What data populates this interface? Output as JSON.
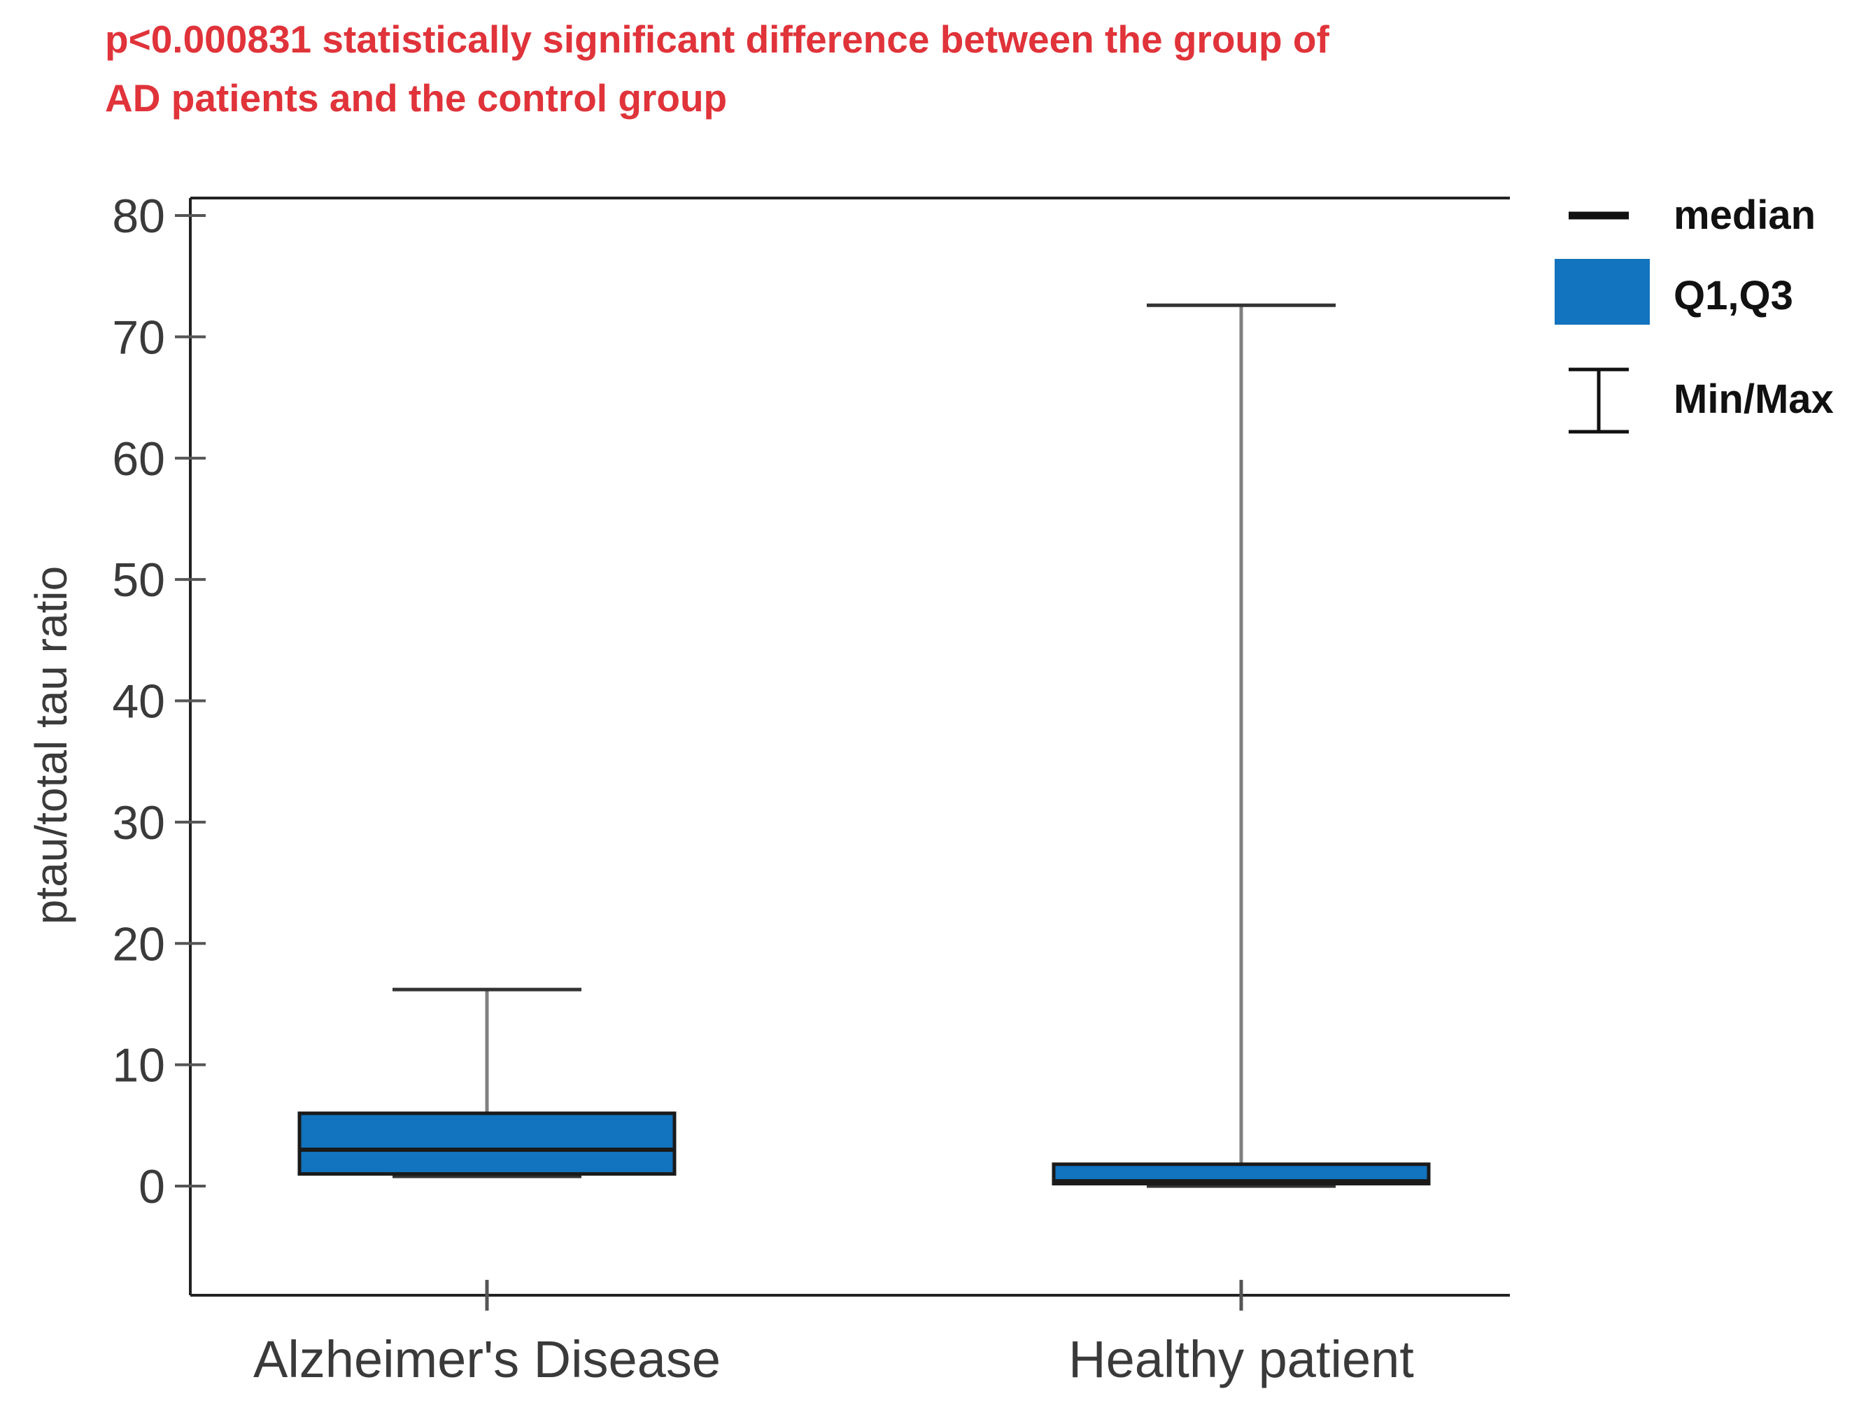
{
  "chart_data": {
    "type": "box",
    "annotation": [
      "p<0.000831 statistically significant difference between the group of",
      "AD patients and the control group"
    ],
    "ylabel": "ptau/total tau ratio",
    "xlabel": "",
    "ylim": [
      -9,
      81
    ],
    "yticks": [
      0,
      10,
      20,
      30,
      40,
      50,
      60,
      70,
      80
    ],
    "categories": [
      "Alzheimer's Disease",
      "Healthy patient"
    ],
    "boxes": [
      {
        "name": "Alzheimer's Disease",
        "min": 0.8,
        "q1": 1.0,
        "median": 3.0,
        "q3": 6.0,
        "max": 16.2
      },
      {
        "name": "Healthy patient",
        "min": 0.0,
        "q1": 0.2,
        "median": 0.4,
        "q3": 1.8,
        "max": 72.6
      }
    ],
    "legend": {
      "position": "top-right",
      "items": [
        {
          "label": "median",
          "symbol": "line"
        },
        {
          "label": "Q1,Q3",
          "symbol": "box"
        },
        {
          "label": "Min/Max",
          "symbol": "whisker"
        }
      ]
    },
    "colors": {
      "box_fill": "#1273be",
      "annotation": "#e0333a",
      "axis": "#222222",
      "whisker": "#808080"
    }
  }
}
